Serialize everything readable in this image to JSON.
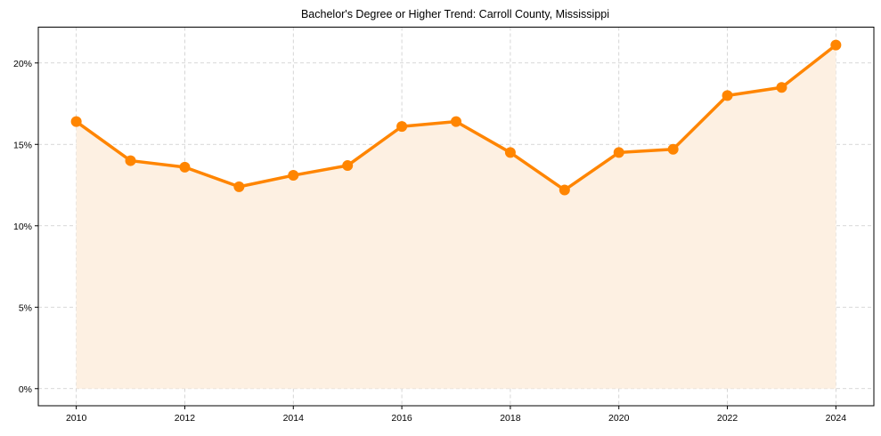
{
  "chart_data": {
    "type": "line",
    "title": "Bachelor's Degree or Higher Trend: Carroll County, Mississippi",
    "xlabel": "",
    "ylabel": "",
    "x": [
      2010,
      2011,
      2012,
      2013,
      2014,
      2015,
      2016,
      2017,
      2018,
      2019,
      2020,
      2021,
      2022,
      2023,
      2024
    ],
    "series": [
      {
        "name": "Bachelor's Degree or Higher",
        "values": [
          16.4,
          14.0,
          13.6,
          12.4,
          13.1,
          13.7,
          16.1,
          16.4,
          14.5,
          12.2,
          14.5,
          14.7,
          18.0,
          18.5,
          21.1
        ],
        "unit": "%",
        "color": "#ff8500",
        "fill_color": "#fdf0e2",
        "marker": "circle"
      }
    ],
    "xticks": [
      "2010",
      "2012",
      "2014",
      "2016",
      "2018",
      "2020",
      "2022",
      "2024"
    ],
    "yticks": [
      "0%",
      "5%",
      "10%",
      "15%",
      "20%"
    ],
    "xlim": [
      2009.3,
      2024.7
    ],
    "ylim": [
      -1.05,
      22.2
    ],
    "grid": true,
    "legend": null
  },
  "colors": {
    "line": "#ff8500",
    "fill": "#fdf0e2",
    "grid": "#cccccc",
    "axis": "#000000"
  }
}
